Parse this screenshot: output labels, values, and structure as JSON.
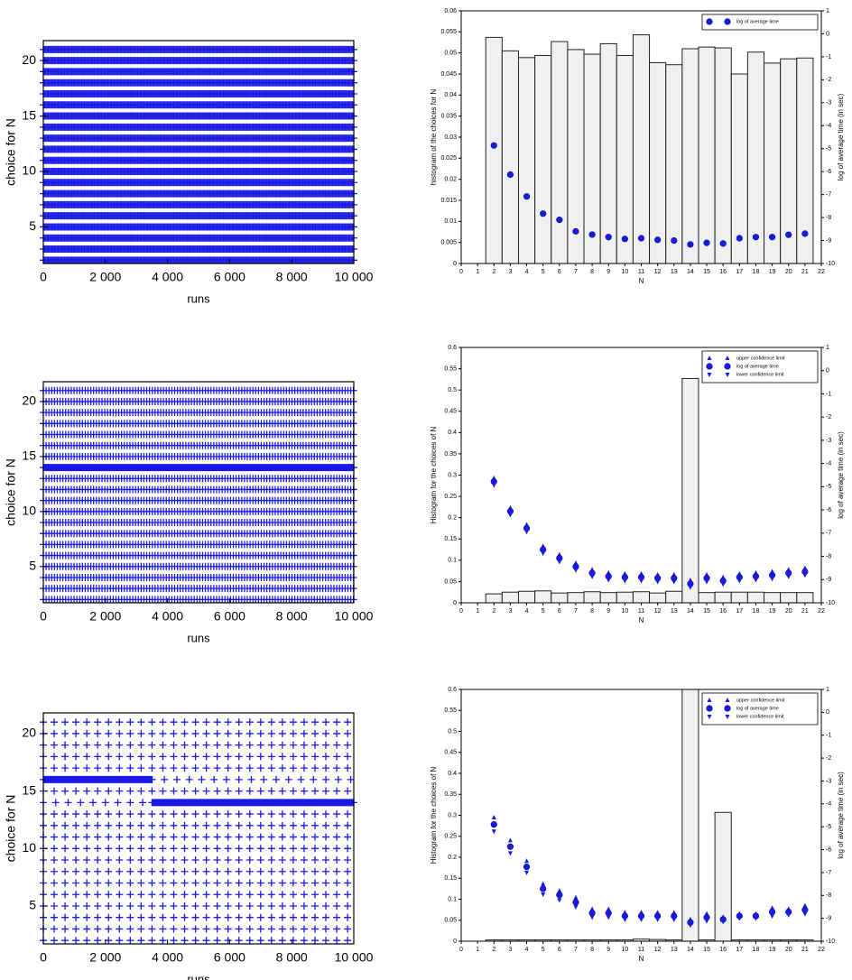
{
  "chart_data": [
    {
      "type": "strip",
      "xlabel": "runs",
      "ylabel": "choice for N",
      "color": "#1a1ae6",
      "xlim": [
        0,
        10000
      ],
      "ylim": [
        1.7,
        21.8
      ],
      "yticks": [
        5,
        10,
        15,
        20
      ],
      "xticks": [
        0,
        {
          "value": 2000,
          "label": "2 000"
        },
        {
          "value": 4000,
          "label": "4 000"
        },
        {
          "value": 6000,
          "label": "6 000"
        },
        {
          "value": 8000,
          "label": "8 000"
        },
        {
          "value": 10000,
          "label": "10 000"
        }
      ],
      "y": [
        2,
        3,
        4,
        5,
        6,
        7,
        8,
        9,
        10,
        11,
        12,
        13,
        14,
        15,
        16,
        17,
        18,
        19,
        20,
        21
      ],
      "ranges": [
        [
          [
            0,
            10000,
            40
          ]
        ],
        [
          [
            0,
            10000,
            40
          ]
        ],
        [
          [
            0,
            10000,
            40
          ]
        ],
        [
          [
            0,
            10000,
            40
          ]
        ],
        [
          [
            0,
            10000,
            40
          ]
        ],
        [
          [
            0,
            10000,
            40
          ]
        ],
        [
          [
            0,
            10000,
            40
          ]
        ],
        [
          [
            0,
            10000,
            40
          ]
        ],
        [
          [
            0,
            10000,
            40
          ]
        ],
        [
          [
            0,
            10000,
            40
          ]
        ],
        [
          [
            0,
            10000,
            40
          ]
        ],
        [
          [
            0,
            10000,
            40
          ]
        ],
        [
          [
            0,
            10000,
            40
          ]
        ],
        [
          [
            0,
            10000,
            40
          ]
        ],
        [
          [
            0,
            10000,
            40
          ]
        ],
        [
          [
            0,
            10000,
            40
          ]
        ],
        [
          [
            0,
            10000,
            40
          ]
        ],
        [
          [
            0,
            10000,
            40
          ]
        ],
        [
          [
            0,
            10000,
            40
          ]
        ],
        [
          [
            0,
            10000,
            40
          ]
        ]
      ]
    },
    {
      "type": "bar",
      "xlabel": "N",
      "ylabel": "histogram of the choices for N",
      "y2label": "log of average time (in sec)",
      "color": "#f0f0f0",
      "xlim": [
        0,
        22
      ],
      "xticks": [
        0,
        1,
        2,
        3,
        4,
        5,
        6,
        7,
        8,
        9,
        10,
        11,
        12,
        13,
        14,
        15,
        16,
        17,
        18,
        19,
        20,
        21,
        22
      ],
      "ylim": [
        0,
        0.06
      ],
      "yticks": [
        0,
        0.005,
        0.01,
        0.015,
        0.02,
        0.025,
        0.03,
        0.035,
        0.04,
        0.045,
        0.05,
        0.055,
        0.06
      ],
      "y2lim": [
        -10,
        1
      ],
      "y2ticks": [
        -10,
        -9,
        -8,
        -7,
        -6,
        -5,
        -4,
        -3,
        -2,
        -1,
        0,
        1
      ],
      "x": [
        2,
        3,
        4,
        5,
        6,
        7,
        8,
        9,
        10,
        11,
        12,
        13,
        14,
        15,
        16,
        17,
        18,
        19,
        20,
        21
      ],
      "values": [
        0.0537,
        0.0505,
        0.0489,
        0.0494,
        0.0527,
        0.0508,
        0.0497,
        0.0522,
        0.0494,
        0.0543,
        0.0477,
        0.0472,
        0.051,
        0.0514,
        0.0512,
        0.045,
        0.0502,
        0.0476,
        0.0486,
        0.0488
      ],
      "series": [
        {
          "name": "log of average time",
          "color": "#1a1ae6",
          "marker": "circle",
          "axis": "y2",
          "values": [
            -4.86,
            -6.13,
            -7.08,
            -7.83,
            -8.1,
            -8.6,
            -8.74,
            -8.85,
            -8.93,
            -8.9,
            -8.97,
            -9.0,
            -9.17,
            -9.1,
            -9.13,
            -8.9,
            -8.85,
            -8.85,
            -8.75,
            -8.7
          ]
        }
      ]
    },
    {
      "type": "strip",
      "xlabel": "runs",
      "ylabel": "choice for N",
      "color": "#1a1ae6",
      "xlim": [
        0,
        10000
      ],
      "ylim": [
        1.7,
        21.8
      ],
      "yticks": [
        5,
        10,
        15,
        20
      ],
      "xticks": [
        0,
        {
          "value": 2000,
          "label": "2 000"
        },
        {
          "value": 4000,
          "label": "4 000"
        },
        {
          "value": 6000,
          "label": "6 000"
        },
        {
          "value": 8000,
          "label": "8 000"
        },
        {
          "value": 10000,
          "label": "10 000"
        }
      ],
      "y": [
        2,
        3,
        4,
        5,
        6,
        7,
        8,
        9,
        10,
        11,
        12,
        13,
        14,
        15,
        16,
        17,
        18,
        19,
        20,
        21
      ],
      "ranges": [
        [
          [
            0,
            10000,
            90
          ]
        ],
        [
          [
            0,
            10000,
            90
          ]
        ],
        [
          [
            0,
            10000,
            90
          ]
        ],
        [
          [
            0,
            10000,
            90
          ]
        ],
        [
          [
            0,
            10000,
            90
          ]
        ],
        [
          [
            0,
            10000,
            90
          ]
        ],
        [
          [
            0,
            10000,
            90
          ]
        ],
        [
          [
            0,
            10000,
            90
          ]
        ],
        [
          [
            0,
            10000,
            90
          ]
        ],
        [
          [
            0,
            10000,
            90
          ]
        ],
        [
          [
            0,
            10000,
            90
          ]
        ],
        [
          [
            0,
            10000,
            90
          ]
        ],
        [
          [
            0,
            10000,
            10
          ]
        ],
        [
          [
            0,
            10000,
            90
          ]
        ],
        [
          [
            0,
            10000,
            90
          ]
        ],
        [
          [
            0,
            10000,
            90
          ]
        ],
        [
          [
            0,
            10000,
            90
          ]
        ],
        [
          [
            0,
            10000,
            90
          ]
        ],
        [
          [
            0,
            10000,
            90
          ]
        ],
        [
          [
            0,
            10000,
            90
          ]
        ]
      ]
    },
    {
      "type": "bar",
      "xlabel": "N",
      "ylabel": "Histogram for the choices of N",
      "y2label": "log of average time (in sec)",
      "color": "#f0f0f0",
      "xlim": [
        0,
        22
      ],
      "xticks": [
        0,
        1,
        2,
        3,
        4,
        5,
        6,
        7,
        8,
        9,
        10,
        11,
        12,
        13,
        14,
        15,
        16,
        17,
        18,
        19,
        20,
        21,
        22
      ],
      "ylim": [
        0,
        0.6
      ],
      "yticks": [
        0,
        0.05,
        0.1,
        0.15,
        0.2,
        0.25,
        0.3,
        0.35,
        0.4,
        0.45,
        0.5,
        0.55,
        0.6
      ],
      "y2lim": [
        -10,
        1
      ],
      "y2ticks": [
        -10,
        -9,
        -8,
        -7,
        -6,
        -5,
        -4,
        -3,
        -2,
        -1,
        0,
        1
      ],
      "x": [
        2,
        3,
        4,
        5,
        6,
        7,
        8,
        9,
        10,
        11,
        12,
        13,
        14,
        15,
        16,
        17,
        18,
        19,
        20,
        21
      ],
      "values": [
        0.021,
        0.025,
        0.027,
        0.028,
        0.023,
        0.024,
        0.026,
        0.024,
        0.025,
        0.026,
        0.023,
        0.027,
        0.527,
        0.024,
        0.025,
        0.025,
        0.025,
        0.024,
        0.024,
        0.024
      ],
      "series": [
        {
          "name": "upper confidence limit",
          "color": "#1a1ae6",
          "marker": "up",
          "axis": "y2",
          "values": [
            -4.63,
            -5.91,
            -6.64,
            -7.56,
            -7.93,
            -8.29,
            -8.57,
            -8.71,
            -8.75,
            -8.75,
            -8.79,
            -8.79,
            -9.03,
            -8.79,
            -8.9,
            -8.75,
            -8.71,
            -8.66,
            -8.57,
            -8.51
          ]
        },
        {
          "name": "log of average time",
          "color": "#1a1ae6",
          "marker": "circle",
          "axis": "y2",
          "values": [
            -4.78,
            -6.06,
            -6.79,
            -7.71,
            -8.08,
            -8.44,
            -8.72,
            -8.86,
            -8.9,
            -8.9,
            -8.94,
            -8.94,
            -9.18,
            -8.94,
            -9.05,
            -8.9,
            -8.86,
            -8.81,
            -8.72,
            -8.66
          ]
        },
        {
          "name": "lower confidence limit",
          "color": "#1a1ae6",
          "marker": "down",
          "axis": "y2",
          "values": [
            -4.93,
            -6.21,
            -6.94,
            -7.86,
            -8.23,
            -8.59,
            -8.87,
            -9.01,
            -9.05,
            -9.05,
            -9.09,
            -9.09,
            -9.33,
            -9.09,
            -9.2,
            -9.05,
            -9.01,
            -8.96,
            -8.87,
            -8.81
          ]
        }
      ]
    },
    {
      "type": "strip",
      "xlabel": "runs",
      "ylabel": "choice for N",
      "color": "#1a1ae6",
      "xlim": [
        0,
        10000
      ],
      "ylim": [
        1.7,
        21.8
      ],
      "yticks": [
        5,
        10,
        15,
        20
      ],
      "xticks": [
        0,
        {
          "value": 2000,
          "label": "2 000"
        },
        {
          "value": 4000,
          "label": "4 000"
        },
        {
          "value": 6000,
          "label": "6 000"
        },
        {
          "value": 8000,
          "label": "8 000"
        },
        {
          "value": 10000,
          "label": "10 000"
        }
      ],
      "y": [
        2,
        3,
        4,
        5,
        6,
        7,
        8,
        9,
        10,
        11,
        12,
        13,
        14,
        15,
        16,
        17,
        18,
        19,
        20,
        21
      ],
      "ranges": [
        [
          [
            0,
            10000,
            350
          ]
        ],
        [
          [
            0,
            10000,
            350
          ]
        ],
        [
          [
            0,
            10000,
            350
          ]
        ],
        [
          [
            0,
            10000,
            350
          ]
        ],
        [
          [
            0,
            10000,
            350
          ]
        ],
        [
          [
            0,
            10000,
            350
          ]
        ],
        [
          [
            0,
            10000,
            350
          ]
        ],
        [
          [
            0,
            10000,
            350
          ]
        ],
        [
          [
            0,
            10000,
            350
          ]
        ],
        [
          [
            0,
            10000,
            350
          ]
        ],
        [
          [
            0,
            10000,
            350
          ]
        ],
        [
          [
            0,
            10000,
            350
          ]
        ],
        [
          [
            0,
            3500,
            400
          ],
          [
            3500,
            10000,
            10
          ]
        ],
        [
          [
            0,
            10000,
            350
          ]
        ],
        [
          [
            0,
            3500,
            10
          ],
          [
            3500,
            10000,
            400
          ]
        ],
        [
          [
            0,
            10000,
            350
          ]
        ],
        [
          [
            0,
            10000,
            350
          ]
        ],
        [
          [
            0,
            10000,
            350
          ]
        ],
        [
          [
            0,
            10000,
            350
          ]
        ],
        [
          [
            0,
            10000,
            350
          ]
        ]
      ]
    },
    {
      "type": "bar",
      "xlabel": "N",
      "ylabel": "Histogram for the choices of N",
      "y2label": "log of average time (in sec)",
      "color": "#f0f0f0",
      "xlim": [
        0,
        22
      ],
      "xticks": [
        0,
        1,
        2,
        3,
        4,
        5,
        6,
        7,
        8,
        9,
        10,
        11,
        12,
        13,
        14,
        15,
        16,
        17,
        18,
        19,
        20,
        21,
        22
      ],
      "ylim": [
        0,
        0.6
      ],
      "yticks": [
        0,
        0.05,
        0.1,
        0.15,
        0.2,
        0.25,
        0.3,
        0.35,
        0.4,
        0.45,
        0.5,
        0.55,
        0.6
      ],
      "y2lim": [
        -10,
        1
      ],
      "y2ticks": [
        -10,
        -9,
        -8,
        -7,
        -6,
        -5,
        -4,
        -3,
        -2,
        -1,
        0,
        1
      ],
      "x": [
        2,
        3,
        4,
        5,
        6,
        7,
        8,
        9,
        10,
        11,
        12,
        13,
        14,
        15,
        16,
        17,
        18,
        19,
        20,
        21
      ],
      "values": [
        0.003,
        0.003,
        0.003,
        0.003,
        0.003,
        0.003,
        0.003,
        0.003,
        0.003,
        0.005,
        0.004,
        0.003,
        0.6,
        0.003,
        0.307,
        0.003,
        0.003,
        0.003,
        0.003,
        0.003
      ],
      "series": [
        {
          "name": "upper confidence limit",
          "color": "#1a1ae6",
          "marker": "up",
          "axis": "y2",
          "values": [
            -4.6,
            -5.6,
            -6.5,
            -7.5,
            -7.8,
            -8.1,
            -8.6,
            -8.6,
            -8.75,
            -8.75,
            -8.75,
            -8.75,
            -9.05,
            -8.8,
            -8.95,
            -8.8,
            -8.8,
            -8.55,
            -8.6,
            -8.45
          ]
        },
        {
          "name": "log of average time",
          "color": "#1a1ae6",
          "marker": "circle",
          "axis": "y2",
          "values": [
            -4.9,
            -5.87,
            -6.75,
            -7.71,
            -7.98,
            -8.3,
            -8.77,
            -8.77,
            -8.9,
            -8.9,
            -8.9,
            -8.9,
            -9.18,
            -8.96,
            -9.05,
            -8.9,
            -8.9,
            -8.72,
            -8.72,
            -8.63
          ]
        },
        {
          "name": "lower confidence limit",
          "color": "#1a1ae6",
          "marker": "down",
          "axis": "y2",
          "values": [
            -5.2,
            -6.15,
            -7.0,
            -7.95,
            -8.2,
            -8.5,
            -8.95,
            -8.95,
            -9.05,
            -9.05,
            -9.05,
            -9.05,
            -9.3,
            -9.12,
            -9.15,
            -9.0,
            -9.0,
            -8.9,
            -8.85,
            -8.8
          ]
        }
      ]
    }
  ]
}
